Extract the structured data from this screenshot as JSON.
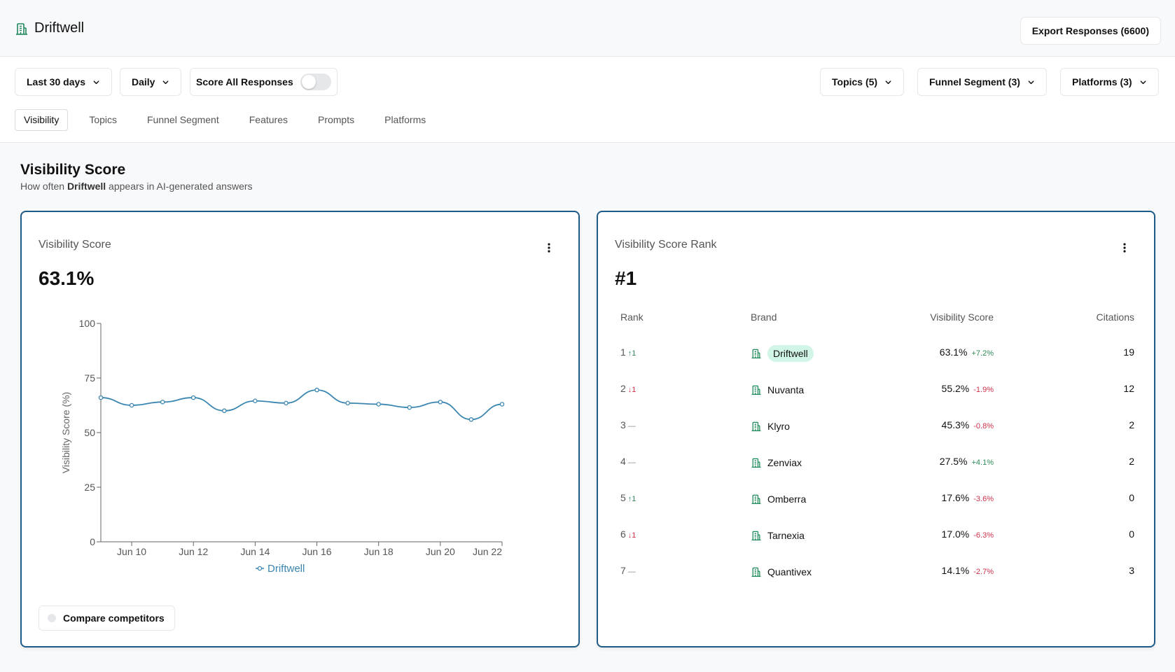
{
  "app": {
    "name": "Driftwell",
    "export_label": "Export Responses (6600)"
  },
  "filters": {
    "range": "Last 30 days",
    "interval": "Daily",
    "score_all_label": "Score All Responses",
    "score_all_on": false,
    "topics": "Topics (5)",
    "funnel": "Funnel Segment (3)",
    "platforms": "Platforms (3)"
  },
  "tabs": [
    "Visibility",
    "Topics",
    "Funnel Segment",
    "Features",
    "Prompts",
    "Platforms"
  ],
  "active_tab": "Visibility",
  "section": {
    "title": "Visibility Score",
    "sub_pre": "How often ",
    "sub_brand": "Driftwell",
    "sub_post": " appears in AI-generated answers"
  },
  "score_card": {
    "title": "Visibility Score",
    "value": "63.1%",
    "compare_label": "Compare competitors"
  },
  "chart_data": {
    "type": "line",
    "ylabel": "Visibility Score (%)",
    "ylim": [
      0,
      100
    ],
    "yticks": [
      0,
      25,
      50,
      75,
      100
    ],
    "x": [
      "Jun 9",
      "Jun 10",
      "Jun 11",
      "Jun 12",
      "Jun 13",
      "Jun 14",
      "Jun 15",
      "Jun 16",
      "Jun 17",
      "Jun 18",
      "Jun 19",
      "Jun 20",
      "Jun 21",
      "Jun 22"
    ],
    "xticks": [
      "Jun 10",
      "Jun 12",
      "Jun 14",
      "Jun 16",
      "Jun 18",
      "Jun 20",
      "Jun 22"
    ],
    "series": [
      {
        "name": "Driftwell",
        "values": [
          66,
          62.5,
          64,
          66,
          60,
          64.5,
          63.5,
          69.5,
          63.5,
          63,
          61.5,
          64,
          56,
          63
        ]
      }
    ],
    "legend": "bottom",
    "grid": false,
    "color": "#3a86b0"
  },
  "rank_card": {
    "title": "Visibility Score Rank",
    "value": "#1",
    "headers": {
      "rank": "Rank",
      "brand": "Brand",
      "score": "Visibility Score",
      "citations": "Citations"
    },
    "rows": [
      {
        "rank": "1",
        "move": "↑1",
        "dir": "up",
        "brand": "Driftwell",
        "highlight": true,
        "score": "63.1%",
        "change": "+7.2%",
        "change_dir": "up",
        "citations": "19"
      },
      {
        "rank": "2",
        "move": "↓1",
        "dir": "down",
        "brand": "Nuvanta",
        "highlight": false,
        "score": "55.2%",
        "change": "-1.9%",
        "change_dir": "down",
        "citations": "12"
      },
      {
        "rank": "3",
        "move": "—",
        "dir": "flat",
        "brand": "Klyro",
        "highlight": false,
        "score": "45.3%",
        "change": "-0.8%",
        "change_dir": "down",
        "citations": "2"
      },
      {
        "rank": "4",
        "move": "—",
        "dir": "flat",
        "brand": "Zenviax",
        "highlight": false,
        "score": "27.5%",
        "change": "+4.1%",
        "change_dir": "up",
        "citations": "2"
      },
      {
        "rank": "5",
        "move": "↑1",
        "dir": "up",
        "brand": "Omberra",
        "highlight": false,
        "score": "17.6%",
        "change": "-3.6%",
        "change_dir": "down",
        "citations": "0"
      },
      {
        "rank": "6",
        "move": "↓1",
        "dir": "down",
        "brand": "Tarnexia",
        "highlight": false,
        "score": "17.0%",
        "change": "-6.3%",
        "change_dir": "down",
        "citations": "0"
      },
      {
        "rank": "7",
        "move": "—",
        "dir": "flat",
        "brand": "Quantivex",
        "highlight": false,
        "score": "14.1%",
        "change": "-2.7%",
        "change_dir": "down",
        "citations": "3"
      }
    ]
  },
  "colors": {
    "accent": "#1f5b88",
    "line": "#3a86b0",
    "brand_icon": "#1f8a5a",
    "up": "#2e8b57",
    "down": "#d0314a"
  },
  "icons": {
    "brand": "building-icon",
    "chevron": "chevron-down-icon",
    "menu": "kebab-menu-icon"
  }
}
